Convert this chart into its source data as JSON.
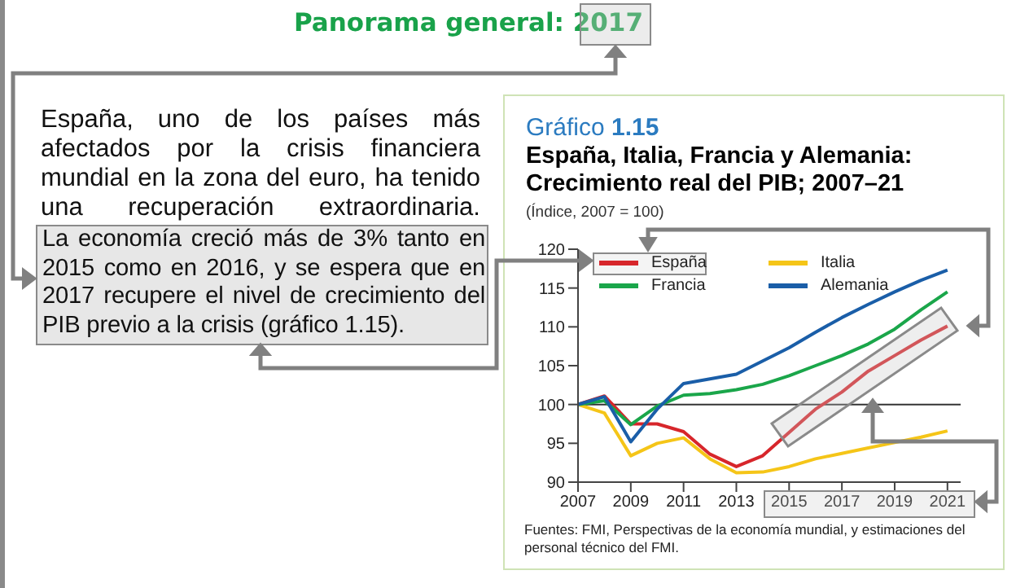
{
  "chart_data": {
    "type": "line",
    "title": "España, Italia, Francia y Alemania: Crecimiento real del PIB; 2007–21",
    "subtitle": "(Índice, 2007 = 100)",
    "annotations": [
      "Panorama general: 2017",
      "España, uno de los países más afectados por la crisis financiera mundial en la zona del euro, ha tenido una recuperación extraordinaria.",
      "La economía creció más de 3% tanto en 2015 como en 2016, y se espera que en 2017 recupere el nivel de crecimiento del PIB previo a la crisis (gráfico 1.15).",
      "Gráfico 1.15",
      "Fuentes: FMI, Perspectivas de la economía mundial, y estimaciones del personal técnico del FMI."
    ],
    "x": [
      2007,
      2008,
      2009,
      2010,
      2011,
      2012,
      2013,
      2014,
      2015,
      2016,
      2017,
      2018,
      2019,
      2020,
      2021
    ],
    "series": [
      {
        "name": "España",
        "color": "#d7262b",
        "values": [
          100,
          101.1,
          97.5,
          97.5,
          96.5,
          93.6,
          92.0,
          93.4,
          96.4,
          99.4,
          101.6,
          104.3,
          106.3,
          108.3,
          110.1
        ]
      },
      {
        "name": "Italia",
        "color": "#f5c518",
        "values": [
          100,
          98.9,
          93.4,
          95.0,
          95.7,
          93.0,
          91.2,
          91.3,
          92.0,
          93.0,
          93.7,
          94.4,
          95.1,
          95.8,
          96.6
        ]
      },
      {
        "name": "Francia",
        "color": "#1aa64a",
        "values": [
          100,
          100.5,
          97.4,
          99.8,
          101.2,
          101.4,
          101.9,
          102.6,
          103.7,
          105.0,
          106.3,
          107.8,
          109.7,
          112.2,
          114.5
        ]
      },
      {
        "name": "Alemania",
        "color": "#1a5ea8",
        "values": [
          100,
          101.0,
          95.2,
          99.4,
          102.7,
          103.3,
          103.9,
          105.6,
          107.3,
          109.3,
          111.2,
          112.9,
          114.5,
          116.0,
          117.3
        ]
      }
    ],
    "xlim": [
      2007,
      2021.5
    ],
    "xticks": [
      2007,
      2009,
      2011,
      2013,
      2015,
      2017,
      2019,
      2021
    ],
    "ylim": [
      90,
      120
    ],
    "yticks": [
      90,
      95,
      100,
      105,
      110,
      115,
      120
    ],
    "ref_lines": [
      {
        "axis": "y",
        "value": 100,
        "color": "#333333"
      }
    ],
    "legend": "top left",
    "grid": false,
    "marker": "none",
    "line_style": "solid"
  }
}
